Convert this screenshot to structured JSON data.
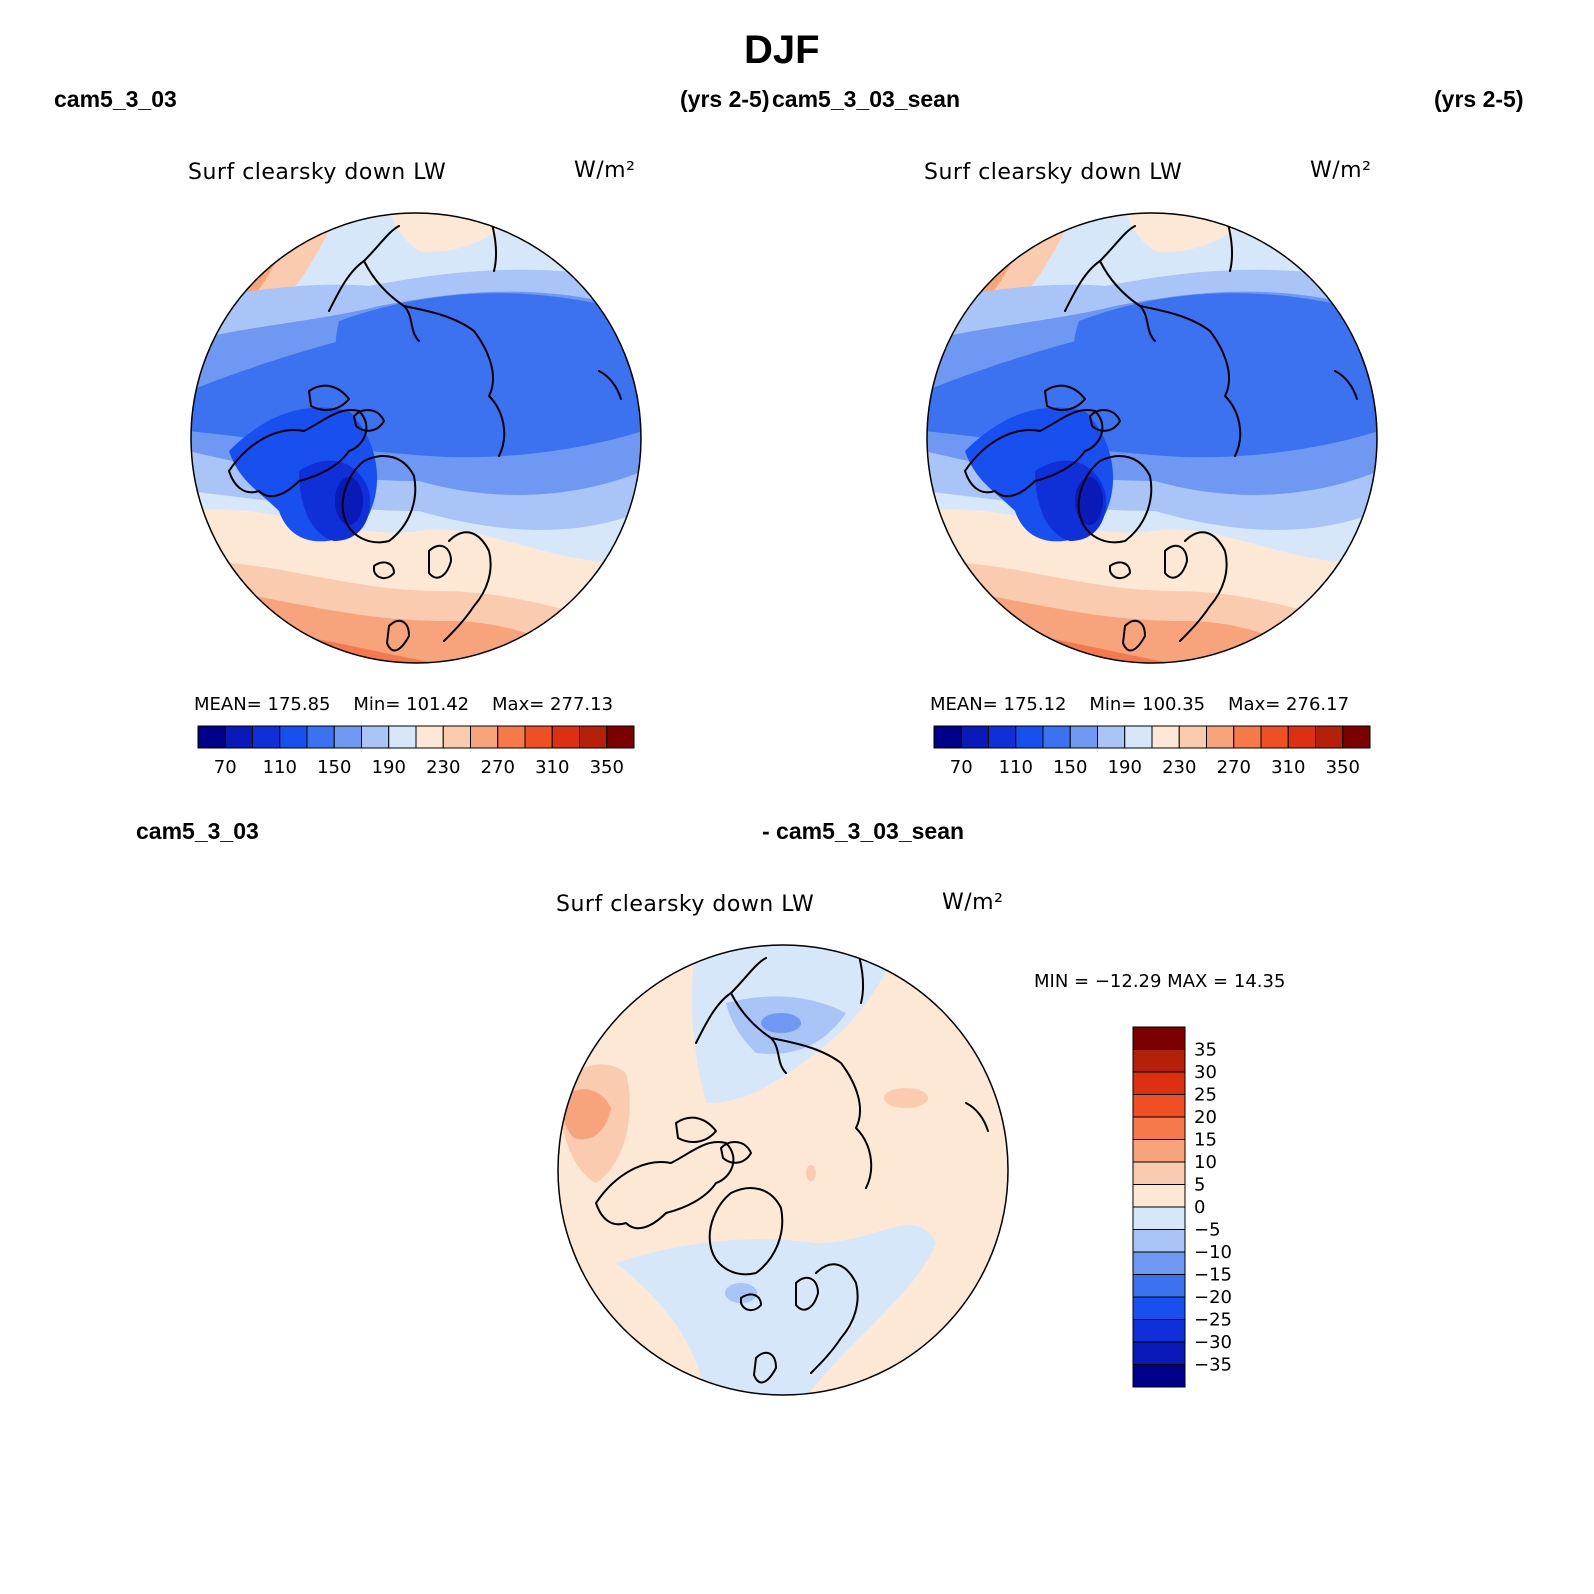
{
  "title": "DJF",
  "header": {
    "left_case": "cam5_3_03",
    "left_years": "(yrs 2-5)",
    "right_case": "cam5_3_03_sean",
    "right_years": "(yrs 2-5)"
  },
  "diff_header": {
    "left": "cam5_3_03",
    "right": "- cam5_3_03_sean"
  },
  "colors": {
    "abs_scale": [
      "#00008b",
      "#0a1ab8",
      "#0f30d9",
      "#1850f0",
      "#3c72ef",
      "#6f98f2",
      "#a9c4f6",
      "#d7e7fa",
      "#fde8d5",
      "#fbcbb0",
      "#f7a47c",
      "#f5794a",
      "#f04e23",
      "#dc3010",
      "#b52008",
      "#7c0000"
    ],
    "diff_scale": [
      "#00008b",
      "#0a1ab8",
      "#0f30d9",
      "#1850f0",
      "#3c72ef",
      "#6f98f2",
      "#a9c4f6",
      "#d7e7fa",
      "#fde8d5",
      "#fbcbb0",
      "#f7a47c",
      "#f5794a",
      "#f04e23",
      "#dc3010",
      "#b52008",
      "#7c0000"
    ],
    "coast": "#000000"
  },
  "chart_data": [
    {
      "type": "heatmap",
      "projection": "north-polar-stereographic",
      "title": "Surf clearsky down LW",
      "units": "W/m²",
      "case": "cam5_3_03",
      "years": "(yrs 2-5)",
      "season": "DJF",
      "stats": {
        "mean": "175.85",
        "min": "101.42",
        "max": "277.13"
      },
      "stats_text": {
        "mean_label": "MEAN=",
        "min_label": "Min=",
        "max_label": "Max="
      },
      "colorbar_ticks": [
        "70",
        "110",
        "150",
        "190",
        "230",
        "270",
        "310",
        "350"
      ],
      "levels": [
        60,
        70,
        80,
        90,
        100,
        110,
        120,
        130,
        140,
        150,
        160,
        170,
        180,
        190,
        200,
        210,
        220,
        230,
        240,
        250,
        260,
        270,
        280,
        290,
        300,
        310,
        320,
        330,
        340,
        350
      ]
    },
    {
      "type": "heatmap",
      "projection": "north-polar-stereographic",
      "title": "Surf clearsky down LW",
      "units": "W/m²",
      "case": "cam5_3_03_sean",
      "years": "(yrs 2-5)",
      "season": "DJF",
      "stats": {
        "mean": "175.12",
        "min": "100.35",
        "max": "276.17"
      },
      "stats_text": {
        "mean_label": "MEAN=",
        "min_label": "Min=",
        "max_label": "Max="
      },
      "colorbar_ticks": [
        "70",
        "110",
        "150",
        "190",
        "230",
        "270",
        "310",
        "350"
      ]
    },
    {
      "type": "heatmap",
      "projection": "north-polar-stereographic",
      "title": "Surf clearsky down LW",
      "units": "W/m²",
      "case": "cam5_3_03 - cam5_3_03_sean",
      "stats": {
        "min": "-12.29",
        "max": "14.35"
      },
      "minmax_text": "MIN = −12.29 MAX =  14.35",
      "colorbar_ticks": [
        "35",
        "30",
        "25",
        "20",
        "15",
        "10",
        "5",
        "0",
        "−5",
        "−10",
        "−15",
        "−20",
        "−25",
        "−30",
        "−35"
      ]
    }
  ]
}
